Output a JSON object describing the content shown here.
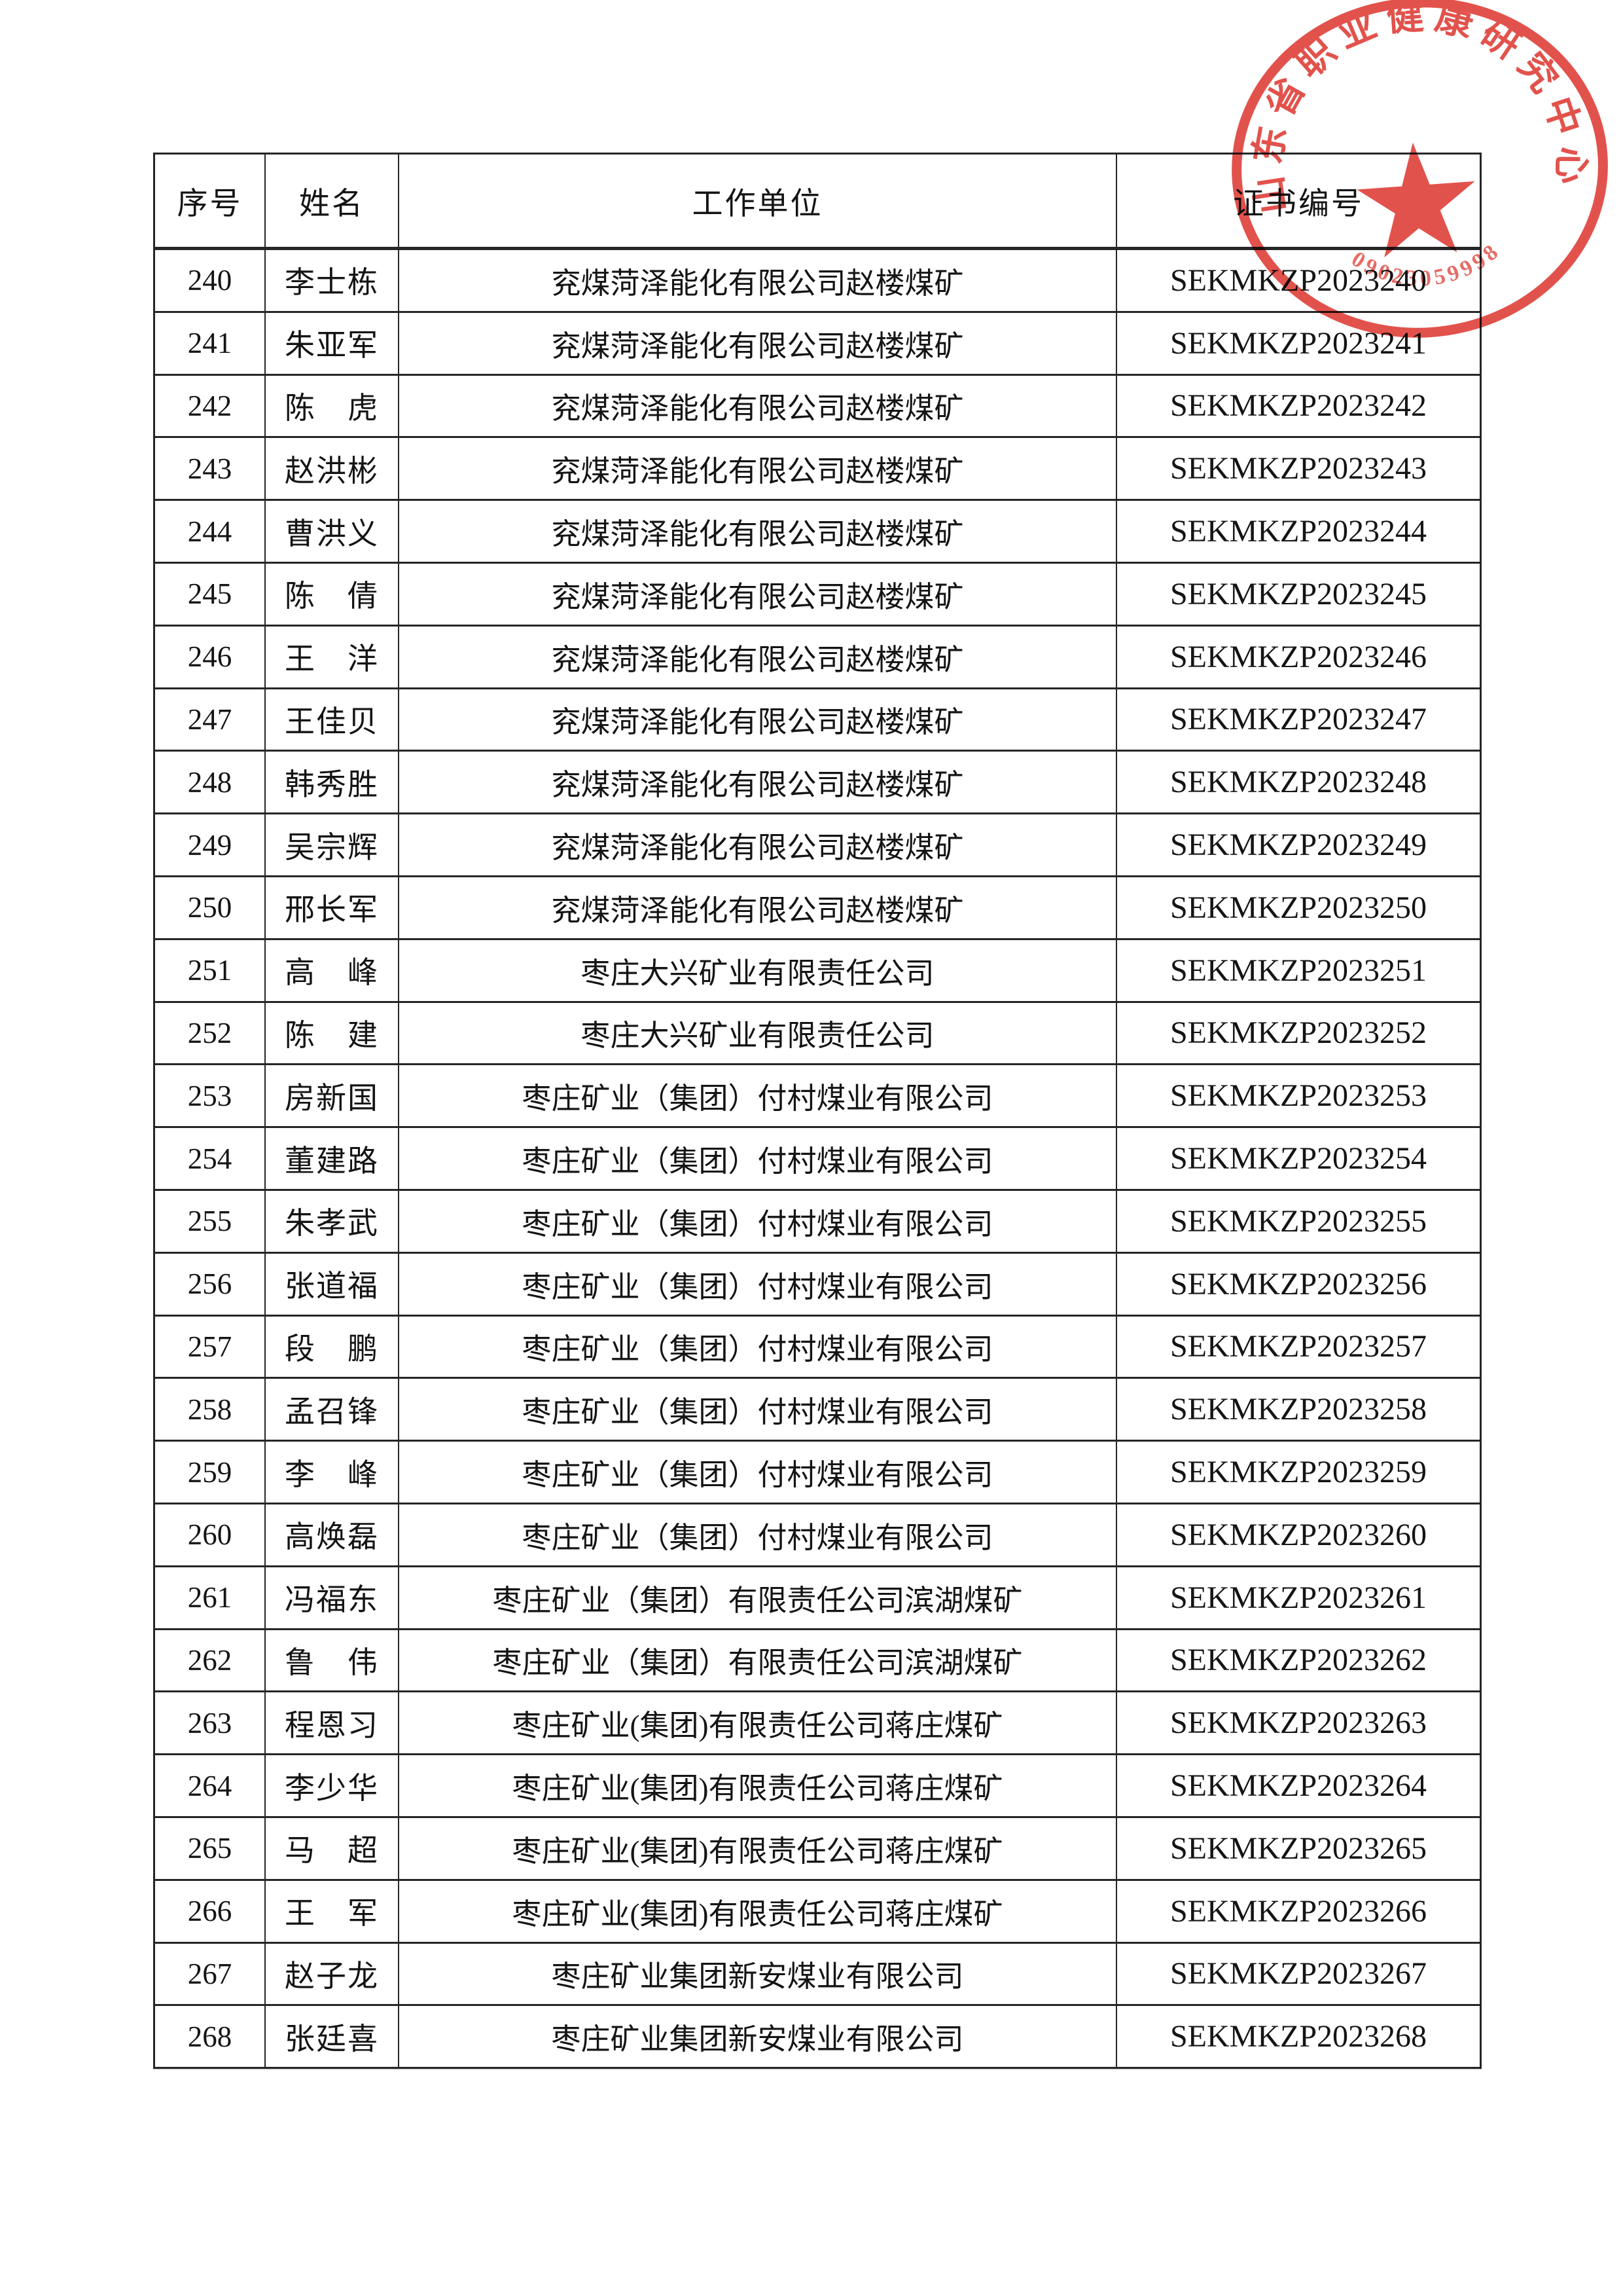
{
  "table": {
    "columns": [
      {
        "key": "no",
        "label": "序号"
      },
      {
        "key": "name",
        "label": "姓名"
      },
      {
        "key": "unit",
        "label": "工作单位"
      },
      {
        "key": "cert",
        "label": "证书编号"
      }
    ],
    "rows": [
      [
        "240",
        "李士栋",
        "兖煤菏泽能化有限公司赵楼煤矿",
        "SEKMKZP2023240"
      ],
      [
        "241",
        "朱亚军",
        "兖煤菏泽能化有限公司赵楼煤矿",
        "SEKMKZP2023241"
      ],
      [
        "242",
        "陈　虎",
        "兖煤菏泽能化有限公司赵楼煤矿",
        "SEKMKZP2023242"
      ],
      [
        "243",
        "赵洪彬",
        "兖煤菏泽能化有限公司赵楼煤矿",
        "SEKMKZP2023243"
      ],
      [
        "244",
        "曹洪义",
        "兖煤菏泽能化有限公司赵楼煤矿",
        "SEKMKZP2023244"
      ],
      [
        "245",
        "陈　倩",
        "兖煤菏泽能化有限公司赵楼煤矿",
        "SEKMKZP2023245"
      ],
      [
        "246",
        "王　洋",
        "兖煤菏泽能化有限公司赵楼煤矿",
        "SEKMKZP2023246"
      ],
      [
        "247",
        "王佳贝",
        "兖煤菏泽能化有限公司赵楼煤矿",
        "SEKMKZP2023247"
      ],
      [
        "248",
        "韩秀胜",
        "兖煤菏泽能化有限公司赵楼煤矿",
        "SEKMKZP2023248"
      ],
      [
        "249",
        "吴宗辉",
        "兖煤菏泽能化有限公司赵楼煤矿",
        "SEKMKZP2023249"
      ],
      [
        "250",
        "邢长军",
        "兖煤菏泽能化有限公司赵楼煤矿",
        "SEKMKZP2023250"
      ],
      [
        "251",
        "高　峰",
        "枣庄大兴矿业有限责任公司",
        "SEKMKZP2023251"
      ],
      [
        "252",
        "陈　建",
        "枣庄大兴矿业有限责任公司",
        "SEKMKZP2023252"
      ],
      [
        "253",
        "房新国",
        "枣庄矿业（集团）付村煤业有限公司",
        "SEKMKZP2023253"
      ],
      [
        "254",
        "董建路",
        "枣庄矿业（集团）付村煤业有限公司",
        "SEKMKZP2023254"
      ],
      [
        "255",
        "朱孝武",
        "枣庄矿业（集团）付村煤业有限公司",
        "SEKMKZP2023255"
      ],
      [
        "256",
        "张道福",
        "枣庄矿业（集团）付村煤业有限公司",
        "SEKMKZP2023256"
      ],
      [
        "257",
        "段　鹏",
        "枣庄矿业（集团）付村煤业有限公司",
        "SEKMKZP2023257"
      ],
      [
        "258",
        "孟召锋",
        "枣庄矿业（集团）付村煤业有限公司",
        "SEKMKZP2023258"
      ],
      [
        "259",
        "李　峰",
        "枣庄矿业（集团）付村煤业有限公司",
        "SEKMKZP2023259"
      ],
      [
        "260",
        "高焕磊",
        "枣庄矿业（集团）付村煤业有限公司",
        "SEKMKZP2023260"
      ],
      [
        "261",
        "冯福东",
        "枣庄矿业（集团）有限责任公司滨湖煤矿",
        "SEKMKZP2023261"
      ],
      [
        "262",
        "鲁　伟",
        "枣庄矿业（集团）有限责任公司滨湖煤矿",
        "SEKMKZP2023262"
      ],
      [
        "263",
        "程恩习",
        "枣庄矿业(集团)有限责任公司蒋庄煤矿",
        "SEKMKZP2023263"
      ],
      [
        "264",
        "李少华",
        "枣庄矿业(集团)有限责任公司蒋庄煤矿",
        "SEKMKZP2023264"
      ],
      [
        "265",
        "马　超",
        "枣庄矿业(集团)有限责任公司蒋庄煤矿",
        "SEKMKZP2023265"
      ],
      [
        "266",
        "王　军",
        "枣庄矿业(集团)有限责任公司蒋庄煤矿",
        "SEKMKZP2023266"
      ],
      [
        "267",
        "赵子龙",
        "枣庄矿业集团新安煤业有限公司",
        "SEKMKZP2023267"
      ],
      [
        "268",
        "张廷喜",
        "枣庄矿业集团新安煤业有限公司",
        "SEKMKZP2023268"
      ]
    ]
  },
  "stamp": {
    "arc_text": "山东省职业健康研究中心",
    "serial": "09023059998",
    "color": "#e0433c"
  }
}
